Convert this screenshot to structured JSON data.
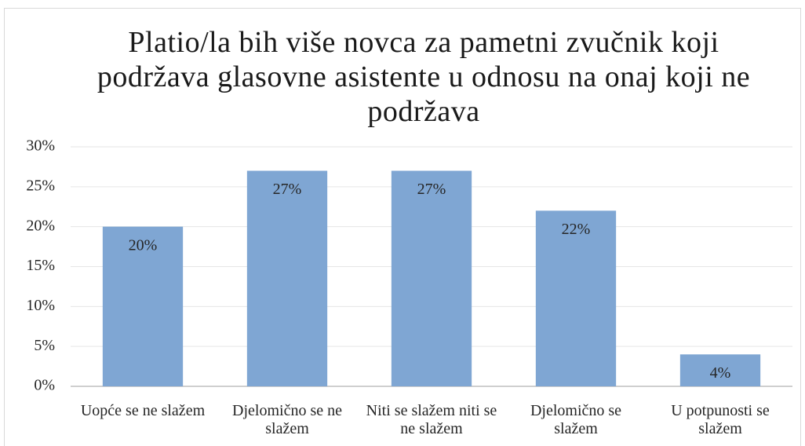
{
  "chart_data": {
    "type": "bar",
    "title": "Platio/la bih više novca za pametni zvučnik koji podržava glasovne asistente u odnosu na onaj koji ne podržava",
    "categories": [
      "Uopće se ne slažem",
      "Djelomično se ne slažem",
      "Niti se slažem niti se ne slažem",
      "Djelomično se slažem",
      "U potpunosti se slažem"
    ],
    "values": [
      20,
      27,
      27,
      22,
      4
    ],
    "value_labels": [
      "20%",
      "27%",
      "27%",
      "22%",
      "4%"
    ],
    "color": "#7fa6d3",
    "ylim": [
      0,
      30
    ],
    "yticks": [
      {
        "value": 0,
        "label": "0%"
      },
      {
        "value": 5,
        "label": "5%"
      },
      {
        "value": 10,
        "label": "10%"
      },
      {
        "value": 15,
        "label": "15%"
      },
      {
        "value": 20,
        "label": "20%"
      },
      {
        "value": 25,
        "label": "25%"
      },
      {
        "value": 30,
        "label": "30%"
      }
    ],
    "grid": true
  }
}
